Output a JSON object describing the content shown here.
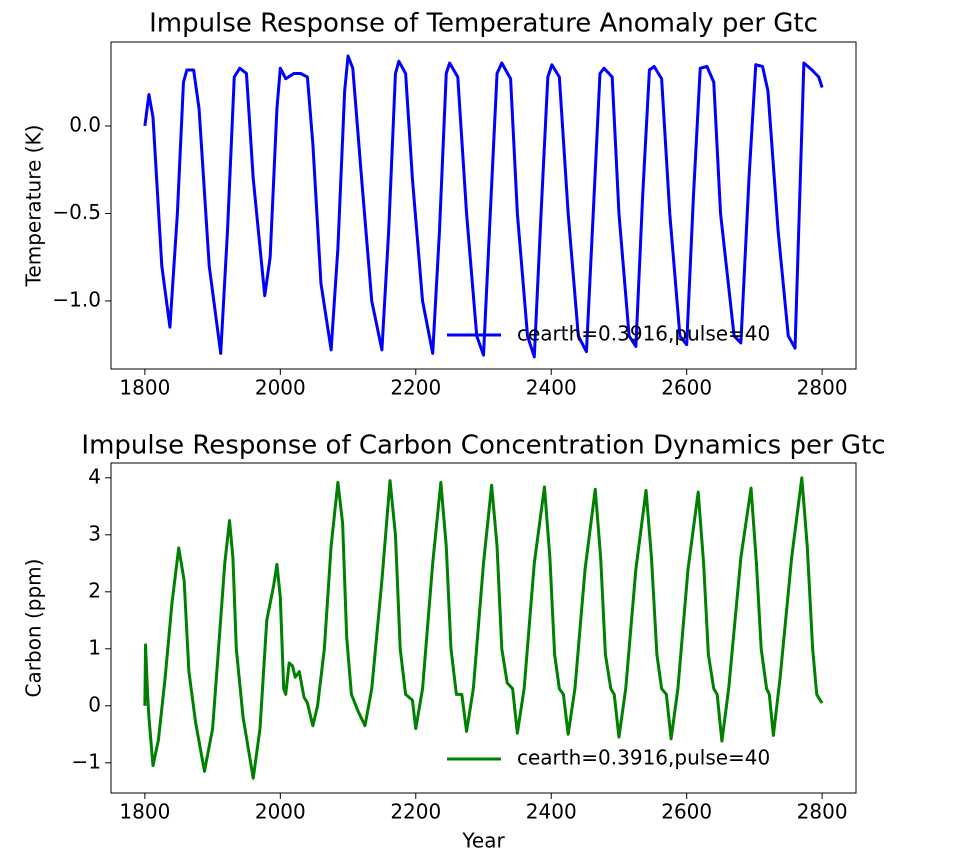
{
  "chart_data": [
    {
      "type": "line",
      "title": "Impulse Response of Temperature Anomaly per Gtc",
      "ylabel": "Temperature (K)",
      "x": [
        1800,
        1806,
        1812,
        1825,
        1837,
        1848,
        1857,
        1862,
        1872,
        1880,
        1895,
        1912,
        1922,
        1932,
        1940,
        1950,
        1960,
        1977,
        1985,
        1995,
        2000,
        2008,
        2020,
        2030,
        2040,
        2048,
        2060,
        2075,
        2085,
        2095,
        2100,
        2107,
        2120,
        2135,
        2150,
        2160,
        2170,
        2175,
        2185,
        2195,
        2210,
        2225,
        2235,
        2245,
        2250,
        2262,
        2275,
        2290,
        2300,
        2310,
        2320,
        2327,
        2340,
        2350,
        2365,
        2375,
        2385,
        2395,
        2401,
        2412,
        2425,
        2440,
        2452,
        2462,
        2472,
        2478,
        2490,
        2500,
        2515,
        2525,
        2535,
        2545,
        2552,
        2563,
        2575,
        2590,
        2600,
        2610,
        2620,
        2630,
        2640,
        2650,
        2670,
        2680,
        2692,
        2702,
        2712,
        2720,
        2735,
        2750,
        2760,
        2767,
        2773,
        2785,
        2795,
        2800
      ],
      "series": [
        {
          "name": "cearth=0.3916,pulse=40",
          "color": "#0000ff",
          "values": [
            0,
            0.18,
            0.05,
            -0.8,
            -1.15,
            -0.5,
            0.25,
            0.32,
            0.32,
            0.1,
            -0.8,
            -1.3,
            -0.6,
            0.28,
            0.33,
            0.3,
            -0.3,
            -0.97,
            -0.75,
            0.1,
            0.33,
            0.27,
            0.3,
            0.3,
            0.28,
            -0.1,
            -0.9,
            -1.28,
            -0.7,
            0.2,
            0.4,
            0.33,
            -0.3,
            -1.0,
            -1.28,
            -0.6,
            0.3,
            0.37,
            0.3,
            -0.3,
            -1.0,
            -1.3,
            -0.6,
            0.3,
            0.36,
            0.28,
            -0.5,
            -1.2,
            -1.31,
            -0.5,
            0.3,
            0.36,
            0.27,
            -0.5,
            -1.2,
            -1.32,
            -0.5,
            0.28,
            0.35,
            0.28,
            -0.5,
            -1.2,
            -1.29,
            -0.5,
            0.3,
            0.33,
            0.28,
            -0.5,
            -1.2,
            -1.26,
            -0.4,
            0.32,
            0.34,
            0.27,
            -0.5,
            -1.2,
            -1.25,
            -0.4,
            0.33,
            0.34,
            0.25,
            -0.5,
            -1.2,
            -1.24,
            -0.3,
            0.35,
            0.34,
            0.2,
            -0.6,
            -1.2,
            -1.27,
            -0.4,
            0.36,
            0.32,
            0.28,
            0.22
          ]
        }
      ],
      "xlim": [
        1750,
        2850
      ],
      "xticks": [
        1800,
        2000,
        2200,
        2400,
        2600,
        2800
      ],
      "ylim": [
        -1.389,
        0.48
      ],
      "yticks": [
        {
          "value": -1.0,
          "label": "−1.0"
        },
        {
          "value": -0.5,
          "label": "−0.5"
        },
        {
          "value": 0.0,
          "label": "0.0"
        }
      ],
      "legend": "lower right"
    },
    {
      "type": "line",
      "title": "Impulse Response of Carbon Concentration Dynamics per Gtc",
      "xlabel": "Year",
      "ylabel": "Carbon (ppm)",
      "x": [
        1800,
        1801,
        1804,
        1806,
        1812,
        1820,
        1830,
        1840,
        1850,
        1858,
        1865,
        1875,
        1888,
        1900,
        1910,
        1918,
        1925,
        1930,
        1935,
        1945,
        1960,
        1970,
        1980,
        1990,
        1995,
        2000,
        2005,
        2008,
        2013,
        2018,
        2022,
        2028,
        2035,
        2040,
        2048,
        2055,
        2065,
        2075,
        2085,
        2092,
        2098,
        2105,
        2115,
        2125,
        2135,
        2150,
        2162,
        2170,
        2177,
        2185,
        2195,
        2200,
        2210,
        2225,
        2237,
        2245,
        2252,
        2260,
        2268,
        2275,
        2285,
        2300,
        2312,
        2320,
        2327,
        2335,
        2343,
        2350,
        2360,
        2375,
        2390,
        2398,
        2405,
        2412,
        2418,
        2425,
        2435,
        2450,
        2465,
        2473,
        2480,
        2488,
        2493,
        2500,
        2510,
        2525,
        2540,
        2548,
        2556,
        2563,
        2570,
        2577,
        2587,
        2602,
        2617,
        2625,
        2632,
        2640,
        2645,
        2652,
        2662,
        2680,
        2695,
        2703,
        2710,
        2718,
        2722,
        2728,
        2738,
        2755,
        2770,
        2778,
        2786,
        2792,
        2797,
        2800
      ],
      "series": [
        {
          "name": "cearth=0.3916,pulse=40",
          "color": "#008000",
          "values": [
            0,
            1.07,
            0.2,
            -0.2,
            -1.05,
            -0.6,
            0.5,
            1.8,
            2.77,
            2.2,
            0.6,
            -0.3,
            -1.15,
            -0.4,
            1.2,
            2.5,
            3.25,
            2.6,
            1.0,
            -0.2,
            -1.27,
            -0.4,
            1.5,
            2.1,
            2.48,
            1.9,
            0.3,
            0.2,
            0.75,
            0.7,
            0.5,
            0.6,
            0.15,
            0.05,
            -0.35,
            0.0,
            1.0,
            2.8,
            3.92,
            3.2,
            1.2,
            0.2,
            -0.1,
            -0.35,
            0.3,
            2.2,
            3.95,
            3.0,
            1.0,
            0.2,
            0.1,
            -0.4,
            0.3,
            2.5,
            3.92,
            2.8,
            1.0,
            0.2,
            0.2,
            -0.45,
            0.3,
            2.5,
            3.87,
            2.8,
            1.0,
            0.4,
            0.3,
            -0.48,
            0.3,
            2.5,
            3.84,
            2.6,
            0.9,
            0.3,
            0.2,
            -0.5,
            0.3,
            2.4,
            3.8,
            2.6,
            0.9,
            0.3,
            0.2,
            -0.55,
            0.3,
            2.4,
            3.78,
            2.6,
            0.9,
            0.3,
            0.2,
            -0.58,
            0.3,
            2.4,
            3.75,
            2.5,
            0.9,
            0.3,
            0.2,
            -0.62,
            0.3,
            2.6,
            3.82,
            2.5,
            1.0,
            0.3,
            0.2,
            -0.52,
            0.5,
            2.6,
            4.0,
            2.8,
            1.0,
            0.2,
            0.1,
            0.05
          ]
        }
      ],
      "xlim": [
        1750,
        2850
      ],
      "xticks": [
        1800,
        2000,
        2200,
        2400,
        2600,
        2800
      ],
      "ylim": [
        -1.53,
        4.26
      ],
      "yticks": [
        {
          "value": -1,
          "label": "−1"
        },
        0,
        1,
        2,
        3,
        4
      ],
      "legend": "lower right"
    }
  ]
}
